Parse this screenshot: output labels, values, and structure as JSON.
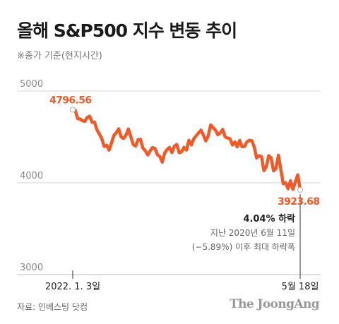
{
  "header": {
    "title": "올해 S&P500 지수 변동 추이",
    "subtitle": "※종가 기준(현지시간)"
  },
  "footer": {
    "source": "자료: 인베스팅 닷컴",
    "brand": "The JoongAng"
  },
  "colors": {
    "line": "#f05a28",
    "grid": "#d5d5d5",
    "axis": "#bbbbbb"
  },
  "chart_data": {
    "type": "line",
    "title": "올해 S&P500 지수 변동 추이",
    "xlabel": "",
    "ylabel": "",
    "ylim": [
      3000,
      5000
    ],
    "yticks": [
      5000,
      4000,
      3000
    ],
    "grid": true,
    "x_tick_labels": [
      "2022. 1. 3일",
      "5월 18일"
    ],
    "series": [
      {
        "values": [
          4796.56,
          4793,
          4700,
          4696,
          4677,
          4670,
          4713,
          4726,
          4659,
          4663,
          4577,
          4532,
          4482,
          4397,
          4410,
          4356,
          4432,
          4516,
          4547,
          4589,
          4500,
          4483,
          4521,
          4587,
          4504,
          4418,
          4401,
          4471,
          4475,
          4380,
          4349,
          4304,
          4348,
          4385,
          4373,
          4306,
          4288,
          4225,
          4328,
          4363,
          4386,
          4329,
          4401,
          4418,
          4328,
          4338,
          4387,
          4357,
          4463,
          4412,
          4480,
          4512,
          4543,
          4575,
          4520,
          4456,
          4511,
          4631,
          4602,
          4575,
          4525,
          4545,
          4582,
          4500,
          4488,
          4481,
          4412,
          4446,
          4392,
          4462,
          4393,
          4397,
          4446,
          4464,
          4459,
          4393,
          4271,
          4296,
          4287,
          4132,
          4175,
          4296,
          4272,
          4131,
          4155,
          4300,
          4147,
          3991,
          4001,
          3935,
          4023,
          3930,
          4008,
          4088,
          3923.68
        ]
      }
    ],
    "annotations": {
      "start_label": "4796.56",
      "end_label": "3923.68",
      "drop_headline": "4.04% 하락",
      "drop_note_1": "지난 2020년 6월 11일",
      "drop_note_2": "(−5.89%) 이후 최대 하락폭"
    }
  }
}
